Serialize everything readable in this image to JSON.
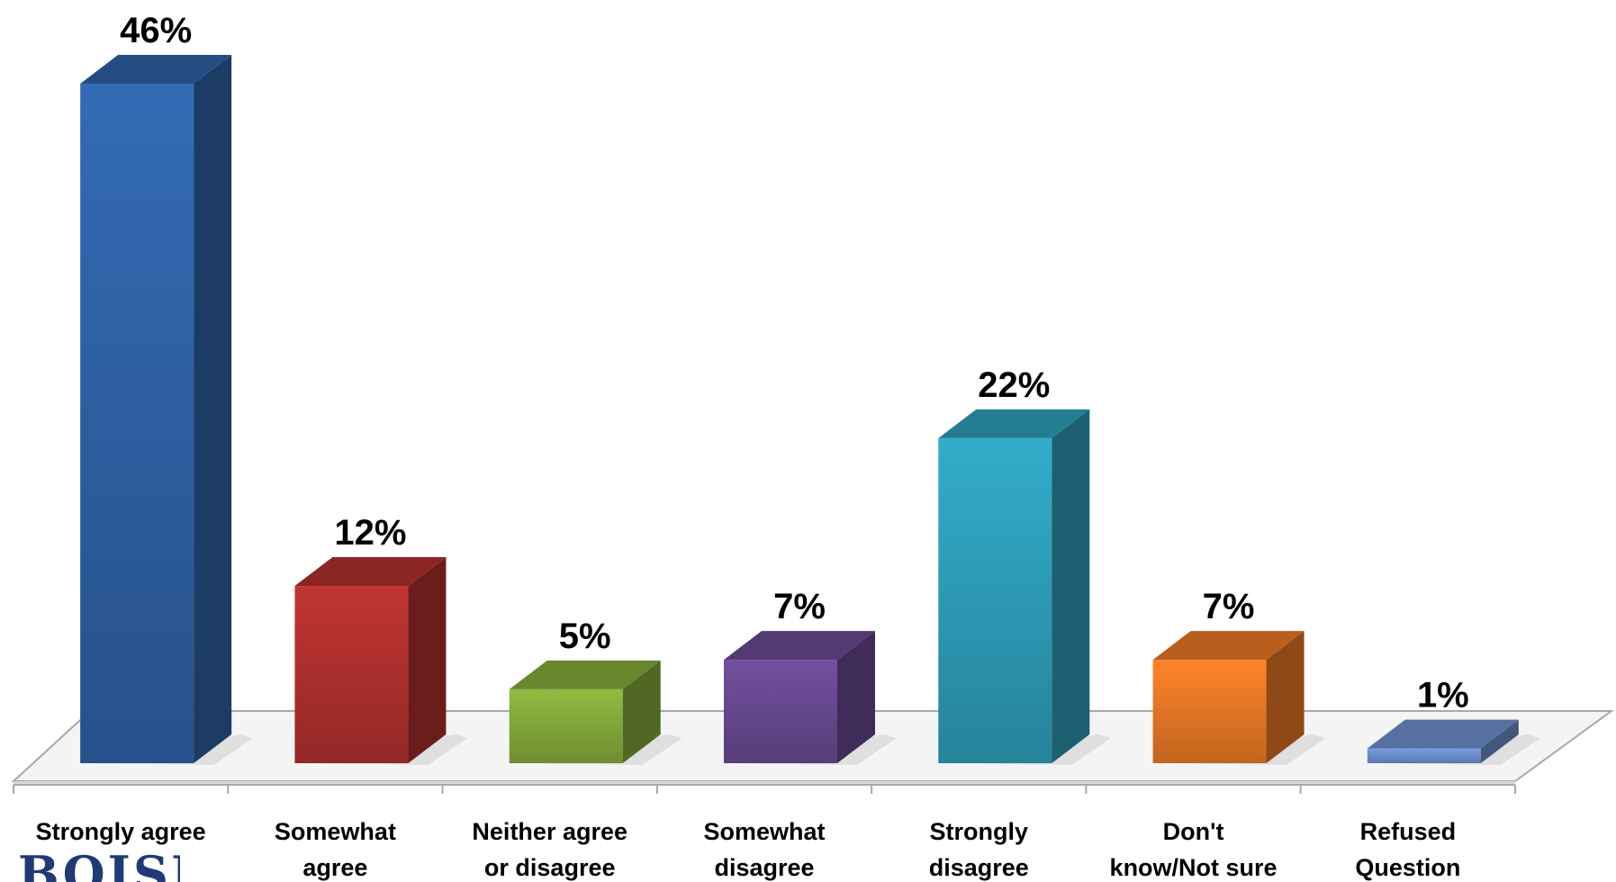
{
  "chart_data": {
    "type": "bar",
    "categories": [
      [
        "Strongly agree"
      ],
      [
        "Somewhat",
        "agree"
      ],
      [
        "Neither agree",
        "or disagree"
      ],
      [
        "Somewhat",
        "disagree"
      ],
      [
        "Strongly",
        "disagree"
      ],
      [
        "Don't",
        "know/Not sure"
      ],
      [
        "Refused",
        "Question"
      ]
    ],
    "values": [
      46,
      12,
      5,
      7,
      22,
      7,
      1
    ],
    "value_labels": [
      "46%",
      "12%",
      "5%",
      "7%",
      "22%",
      "7%",
      "1%"
    ],
    "colors": [
      "#2f63a8",
      "#b3312f",
      "#86ad3c",
      "#6a4a93",
      "#2ea0bc",
      "#ec7a25",
      "#6e91cf"
    ],
    "ylim": [
      0,
      50
    ],
    "grid": false,
    "legend": "none",
    "style": "3d-bar"
  },
  "logo": {
    "text": "BOISE"
  }
}
